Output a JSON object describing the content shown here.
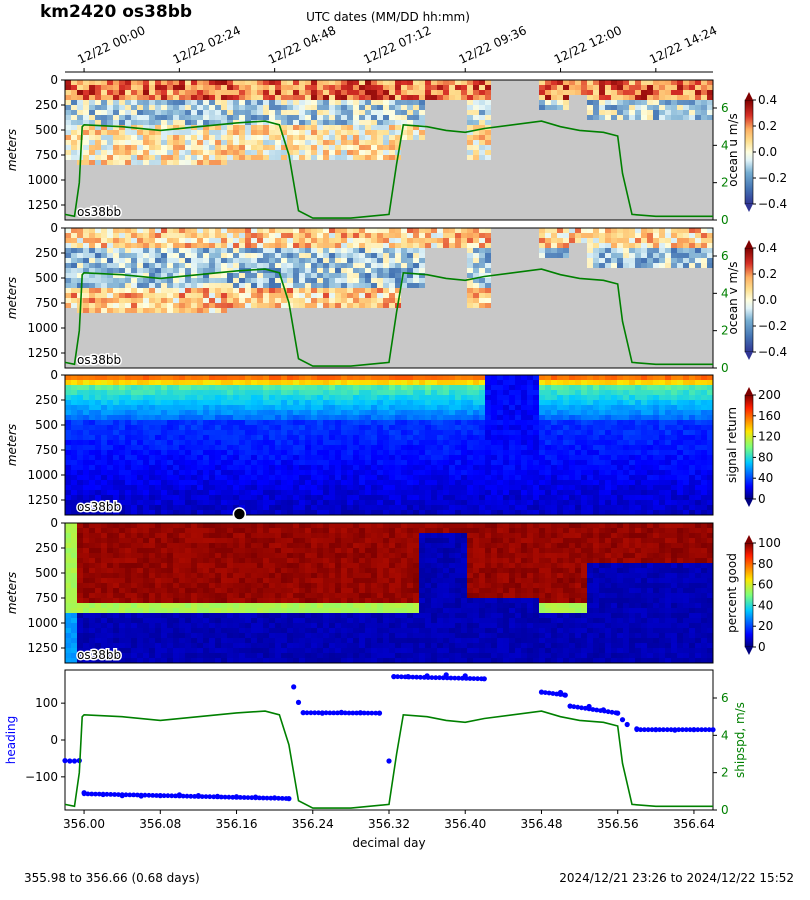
{
  "title": "km2420 os38bb",
  "top_axis": {
    "label": "UTC dates (MM/DD hh:mm)",
    "ticks": [
      {
        "day": 356.0,
        "label": "12/22 00:00"
      },
      {
        "day": 356.1,
        "label": "12/22 02:24"
      },
      {
        "day": 356.2,
        "label": "12/22 04:48"
      },
      {
        "day": 356.3,
        "label": "12/22 07:12"
      },
      {
        "day": 356.4,
        "label": "12/22 09:36"
      },
      {
        "day": 356.5,
        "label": "12/22 12:00"
      },
      {
        "day": 356.6,
        "label": "12/22 14:24"
      }
    ]
  },
  "footer": {
    "left": "355.98 to 356.66 (0.68 days)",
    "right": "2024/12/21 23:26 to 2024/12/22 15:52"
  },
  "chart_data": [
    {
      "type": "heatmap",
      "instrument_label": "os38bb",
      "ylabel": "meters",
      "y_ticks": [
        0,
        250,
        500,
        750,
        1000,
        1250
      ],
      "ylim": [
        1400,
        0
      ],
      "colorbar": {
        "label": "ocean u m/s",
        "ticks": [
          "0.4",
          "0.2",
          "0.0",
          "−0.2",
          "−0.4"
        ],
        "range": [
          -0.4,
          0.4
        ],
        "colormap": "RdYlBu_r"
      },
      "right_axis": {
        "label": "",
        "ticks": [
          0,
          2,
          4,
          6
        ],
        "ylim": [
          0,
          7.5
        ],
        "color": "#008000"
      }
    },
    {
      "type": "heatmap",
      "instrument_label": "os38bb",
      "ylabel": "meters",
      "y_ticks": [
        0,
        250,
        500,
        750,
        1000,
        1250
      ],
      "ylim": [
        1400,
        0
      ],
      "colorbar": {
        "label": "ocean v m/s",
        "ticks": [
          "0.4",
          "0.2",
          "0.0",
          "−0.2",
          "−0.4"
        ],
        "range": [
          -0.4,
          0.4
        ],
        "colormap": "RdYlBu_r"
      },
      "right_axis": {
        "label": "",
        "ticks": [
          0,
          2,
          4,
          6
        ],
        "ylim": [
          0,
          7.5
        ],
        "color": "#008000"
      }
    },
    {
      "type": "heatmap",
      "instrument_label": "os38bb",
      "ylabel": "meters",
      "y_ticks": [
        0,
        250,
        500,
        750,
        1000,
        1250
      ],
      "ylim": [
        1400,
        0
      ],
      "colorbar": {
        "label": "signal return",
        "ticks": [
          "200",
          "160",
          "120",
          "80",
          "40",
          "0"
        ],
        "range": [
          0,
          200
        ],
        "colormap": "jet"
      }
    },
    {
      "type": "heatmap",
      "instrument_label": "os38bb",
      "ylabel": "meters",
      "y_ticks": [
        0,
        250,
        500,
        750,
        1000,
        1250
      ],
      "ylim": [
        1400,
        0
      ],
      "colorbar": {
        "label": "percent good",
        "ticks": [
          "100",
          "80",
          "60",
          "40",
          "20",
          "0"
        ],
        "range": [
          0,
          100
        ],
        "colormap": "jet"
      }
    },
    {
      "type": "scatter",
      "xlabel": "decimal day",
      "ylabel": "heading",
      "ylabel_right": "shipspd, m/s",
      "xlim": [
        355.98,
        356.66
      ],
      "x_ticks": [
        "356.00",
        "356.08",
        "356.16",
        "356.24",
        "356.32",
        "356.40",
        "356.48",
        "356.56",
        "356.64"
      ],
      "ylim": [
        -190,
        190
      ],
      "y_ticks": [
        "100",
        "0",
        "−100"
      ],
      "right_ylim": [
        0,
        7.5
      ],
      "right_ticks": [
        "6",
        "4",
        "2",
        "0"
      ],
      "colors": {
        "heading": "#0000ff",
        "speed": "#008000"
      },
      "series": [
        {
          "name": "heading",
          "points": [
            [
              355.98,
              -56
            ],
            [
              355.985,
              -57
            ],
            [
              355.99,
              -57
            ],
            [
              355.995,
              -56
            ],
            [
              356.0,
              -143
            ],
            [
              356.02,
              -148
            ],
            [
              356.04,
              -151
            ],
            [
              356.06,
              -152
            ],
            [
              356.08,
              -151
            ],
            [
              356.1,
              -149
            ],
            [
              356.12,
              -151
            ],
            [
              356.14,
              -153
            ],
            [
              356.16,
              -154
            ],
            [
              356.18,
              -155
            ],
            [
              356.2,
              -157
            ],
            [
              356.215,
              -159
            ],
            [
              356.22,
              144
            ],
            [
              356.225,
              102
            ],
            [
              356.23,
              74
            ],
            [
              356.25,
              73
            ],
            [
              356.27,
              75
            ],
            [
              356.29,
              74
            ],
            [
              356.31,
              73
            ],
            [
              356.32,
              -57
            ],
            [
              356.325,
              172
            ],
            [
              356.34,
              172
            ],
            [
              356.36,
              174
            ],
            [
              356.38,
              177
            ],
            [
              356.4,
              174
            ],
            [
              356.42,
              166
            ],
            [
              356.48,
              130
            ],
            [
              356.5,
              129
            ],
            [
              356.505,
              122
            ],
            [
              356.51,
              92
            ],
            [
              356.53,
              91
            ],
            [
              356.545,
              82
            ],
            [
              356.56,
              73
            ],
            [
              356.565,
              55
            ],
            [
              356.57,
              42
            ],
            [
              356.58,
              30
            ],
            [
              356.6,
              28
            ],
            [
              356.62,
              27
            ],
            [
              356.64,
              28
            ],
            [
              356.66,
              28
            ]
          ]
        },
        {
          "name": "shipspd",
          "points": [
            [
              355.98,
              0.3
            ],
            [
              355.99,
              0.2
            ],
            [
              355.995,
              2.0
            ],
            [
              355.998,
              5.0
            ],
            [
              356.0,
              5.1
            ],
            [
              356.04,
              5.0
            ],
            [
              356.08,
              4.8
            ],
            [
              356.12,
              5.0
            ],
            [
              356.16,
              5.2
            ],
            [
              356.19,
              5.3
            ],
            [
              356.205,
              5.1
            ],
            [
              356.215,
              3.5
            ],
            [
              356.225,
              0.5
            ],
            [
              356.24,
              0.1
            ],
            [
              356.28,
              0.1
            ],
            [
              356.32,
              0.3
            ],
            [
              356.328,
              3.0
            ],
            [
              356.335,
              5.1
            ],
            [
              356.36,
              5.0
            ],
            [
              356.38,
              4.8
            ],
            [
              356.4,
              4.7
            ],
            [
              356.42,
              4.9
            ],
            [
              356.48,
              5.3
            ],
            [
              356.5,
              5.0
            ],
            [
              356.52,
              4.8
            ],
            [
              356.545,
              4.7
            ],
            [
              356.56,
              4.5
            ],
            [
              356.565,
              2.5
            ],
            [
              356.575,
              0.3
            ],
            [
              356.6,
              0.2
            ],
            [
              356.64,
              0.2
            ],
            [
              356.66,
              0.2
            ]
          ]
        }
      ]
    }
  ]
}
